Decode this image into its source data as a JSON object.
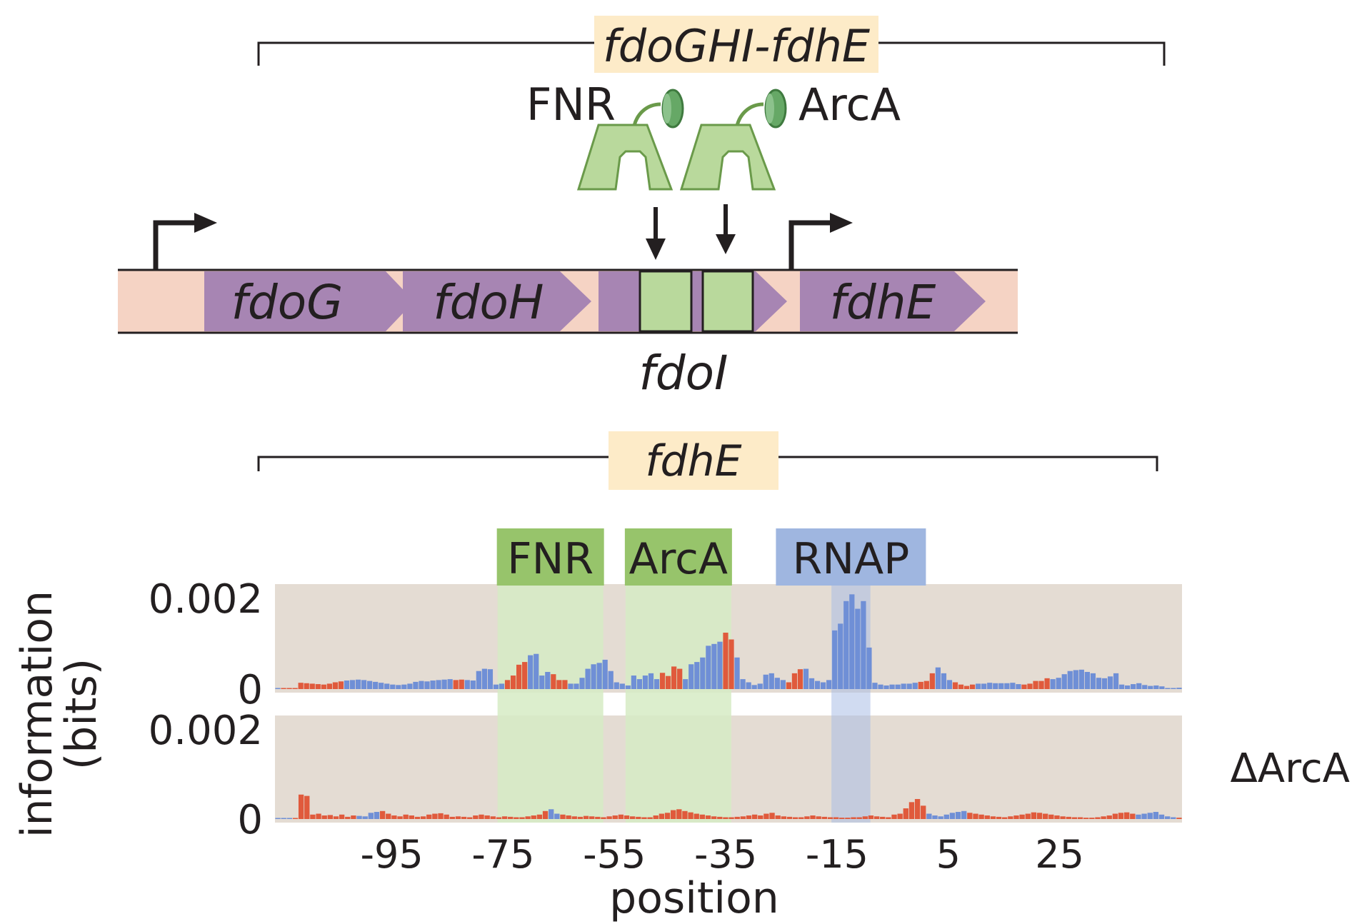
{
  "operon": {
    "bracket_label": "fdoGHI-fdhE",
    "regulators": [
      "FNR",
      "ArcA"
    ],
    "genes": [
      "fdoG",
      "fdoH",
      "fdoI",
      "fdhE"
    ]
  },
  "promoter": {
    "bracket_label": "fdhE"
  },
  "chart_data": {
    "type": "bar",
    "xlabel": "position",
    "ylabel": "information\n(bits)",
    "xlim": [
      -116,
      47
    ],
    "x_ticks": [
      -95,
      -75,
      -55,
      -35,
      -15,
      5,
      25
    ],
    "regions": [
      {
        "label": "FNR",
        "x": [
          -76,
          -57
        ],
        "color": "#97c46b"
      },
      {
        "label": "ArcA",
        "x": [
          -53,
          -34
        ],
        "color": "#97c46b"
      },
      {
        "label": "RNAP",
        "x": [
          -16,
          -9
        ],
        "color": "#9fb6e0"
      }
    ],
    "colors": {
      "activator": "#e05a3c",
      "repressor": "#6f8fd6"
    },
    "panels": [
      {
        "name": "",
        "y_ticks": [
          "0.002",
          "0"
        ],
        "ylim": [
          0,
          0.0022
        ],
        "bar_values": [
          2e-05,
          0,
          0,
          0,
          0.00014,
          0.00013,
          0.00012,
          0.00011,
          0.0001,
          0.00012,
          0.00015,
          0.00017,
          0.00019,
          0.0002,
          0.00021,
          0.0002,
          0.00018,
          0.00016,
          0.00014,
          0.00012,
          0.0001,
          9e-05,
          0.0001,
          0.00012,
          0.00016,
          0.00018,
          0.00017,
          0.00019,
          0.0002,
          0.00021,
          0.00022,
          0.0002,
          0.00021,
          0.0002,
          0.00019,
          0.0004,
          0.00045,
          0.00044,
          0.0001,
          0.00012,
          0.0002,
          0.0003,
          0.00054,
          0.0006,
          0.00075,
          0.00078,
          0.0003,
          0.00038,
          0.00033,
          0.0002,
          0.0002,
          0.00012,
          0.00012,
          0.00025,
          0.00045,
          0.00055,
          0.00058,
          0.00065,
          0.0004,
          0.00015,
          0.00012,
          8e-05,
          0.0003,
          0.00022,
          0.0003,
          0.00035,
          0.00022,
          0.00036,
          0.00029,
          0.0005,
          0.00045,
          0.00022,
          0.00055,
          0.0006,
          0.0007,
          0.00096,
          0.001,
          0.00105,
          0.00125,
          0.0011,
          0.0007,
          0.00022,
          0.00015,
          9e-05,
          0.00012,
          0.00032,
          0.00035,
          0.00025,
          0.0002,
          0.00015,
          0.00035,
          0.00044,
          0.00045,
          0.00024,
          0.00018,
          0.00015,
          0.0002,
          0.0013,
          0.00145,
          0.00195,
          0.0021,
          0.00178,
          0.00195,
          0.00092,
          0.00014,
          0.0001,
          8e-05,
          0.0001,
          0.0001,
          0.00012,
          0.00012,
          0.00014,
          0.00016,
          0.00018,
          0.00035,
          0.00048,
          0.00035,
          0.0002,
          0.00015,
          0.0001,
          7e-05,
          0.0001,
          0.00012,
          0.00012,
          0.00014,
          0.00013,
          0.00013,
          0.00013,
          0.00014,
          0.00011,
          0.0001,
          0.00012,
          0.00018,
          0.00018,
          0.00024,
          0.00022,
          0.00025,
          0.00033,
          0.0004,
          0.00042,
          0.00043,
          0.00038,
          0.00035,
          0.00025,
          0.00024,
          0.00028,
          0.00035,
          0.0001,
          8e-05,
          0.00011,
          0.00013,
          9e-05,
          7e-05,
          8e-05,
          6e-05,
          0,
          0,
          3e-05
        ],
        "bar_roles": "ARRRRRRRRRRRBBBBBBBBBBBBBBBBBBBRRBBBBBBBRRRRBBBBRRRBBBBBBBBBBBBBBBBRRRRBBBBBBBRRBBBBBBBBBRRRBBBBBBBBBBBBBBBBBBBBRRRBBBRRRRBBBBBBBBRRRRRBBBBBBBBBBBBBBBBBBBBBBA"
      },
      {
        "name": "ΔArcA",
        "y_ticks": [
          "0.002",
          "0"
        ],
        "ylim": [
          0,
          0.0022
        ],
        "bar_values": [
          2e-05,
          0,
          0,
          0,
          0.00055,
          0.00052,
          0.0001,
          0.00012,
          8e-05,
          9e-05,
          6e-05,
          0.0001,
          5e-05,
          8e-05,
          7e-05,
          6e-05,
          0.00014,
          0.00016,
          0.00018,
          0.00012,
          8e-05,
          6e-05,
          0.0001,
          8e-05,
          5e-05,
          6e-05,
          0.0001,
          0.00012,
          0.00013,
          0.0001,
          5e-05,
          6e-05,
          5e-05,
          4e-05,
          8e-05,
          0.0001,
          8e-05,
          6e-05,
          4e-05,
          6e-05,
          5e-05,
          4e-05,
          4e-05,
          6e-05,
          8e-05,
          0.0001,
          0.00018,
          0.00022,
          0.00012,
          0.0001,
          8e-05,
          6e-05,
          5e-05,
          7e-05,
          6e-05,
          5e-05,
          4e-05,
          6e-05,
          8e-05,
          0.0001,
          8e-05,
          6e-05,
          5e-05,
          4e-05,
          4e-05,
          8e-05,
          0.00012,
          0.00014,
          0.0002,
          0.00022,
          0.00018,
          0.00015,
          0.00012,
          0.0001,
          8e-05,
          6e-05,
          5e-05,
          4e-05,
          4e-05,
          5e-05,
          6e-05,
          8e-05,
          0.0001,
          8e-05,
          0.00012,
          0.00014,
          8e-05,
          6e-05,
          5e-05,
          4e-05,
          4e-05,
          6e-05,
          8e-05,
          6e-05,
          5e-05,
          4e-05,
          4e-05,
          3e-05,
          3e-05,
          4e-05,
          4e-05,
          6e-05,
          8e-05,
          6e-05,
          5e-05,
          4e-05,
          0.0001,
          0.00012,
          0.00024,
          0.00038,
          0.00045,
          0.0003,
          0.00012,
          8e-05,
          6e-05,
          0.0001,
          0.00014,
          0.00016,
          0.00018,
          0.00014,
          0.00012,
          0.0001,
          8e-05,
          6e-05,
          5e-05,
          4e-05,
          6e-05,
          8e-05,
          0.0001,
          0.00012,
          0.00015,
          0.00014,
          0.00012,
          0.0001,
          8e-05,
          6e-05,
          5e-05,
          4e-05,
          4e-05,
          3e-05,
          3e-05,
          4e-05,
          6e-05,
          8e-05,
          0.00012,
          0.00014,
          0.00015,
          0.00012,
          0.0001,
          0.00012,
          0.00014,
          0.00016,
          0.0001,
          6e-05,
          4e-05,
          3e-05
        ],
        "bar_roles": "ABBRRRRRRRRRRRBBBBRRRRRRRRRRRRRRRRRRRRRRRRRRRRRBBRRRRRRRRRRRRRRRRRRRRRRRRRRRRRRRRRRRRRRRRRRRRRRRRRRRRRRRRRRRRRRRBBBBBBBRRRRRRRRRRRRRRRRRRRRRRRRRRRRRBBBBBBBRRRRRRRA"
      }
    ]
  }
}
